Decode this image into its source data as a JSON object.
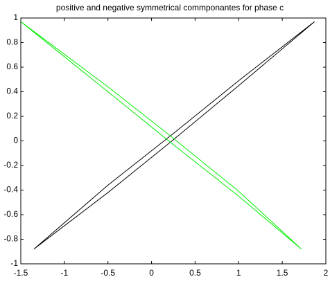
{
  "chart_data": {
    "type": "line",
    "title": "positive  and negative symmetrical commponantes  for phase c",
    "series": [
      {
        "color": "#000000",
        "x": [
          -1.35,
          -0.5,
          0.25,
          1.0,
          1.87,
          1.0,
          0.2,
          -0.5,
          -1.35
        ],
        "values": [
          -0.88,
          -0.36,
          0.06,
          0.49,
          0.97,
          0.45,
          -0.02,
          -0.42,
          -0.88
        ]
      },
      {
        "color": "#00ee00",
        "x": [
          -1.5,
          -0.5,
          0.25,
          1.0,
          1.72,
          1.0,
          0.2,
          -0.5,
          -1.5
        ],
        "values": [
          0.97,
          0.4,
          -0.03,
          -0.45,
          -0.88,
          -0.41,
          0.05,
          0.44,
          0.97
        ]
      }
    ],
    "xlim": [
      -1.5,
      2
    ],
    "xticks": [
      -1.5,
      -1,
      -0.5,
      0,
      0.5,
      1,
      1.5,
      2
    ],
    "ylim": [
      -1,
      1
    ],
    "yticks": [
      -1,
      -0.8,
      -0.6,
      -0.4,
      -0.2,
      0,
      0.2,
      0.4,
      0.6,
      0.8,
      1
    ],
    "grid": false
  }
}
